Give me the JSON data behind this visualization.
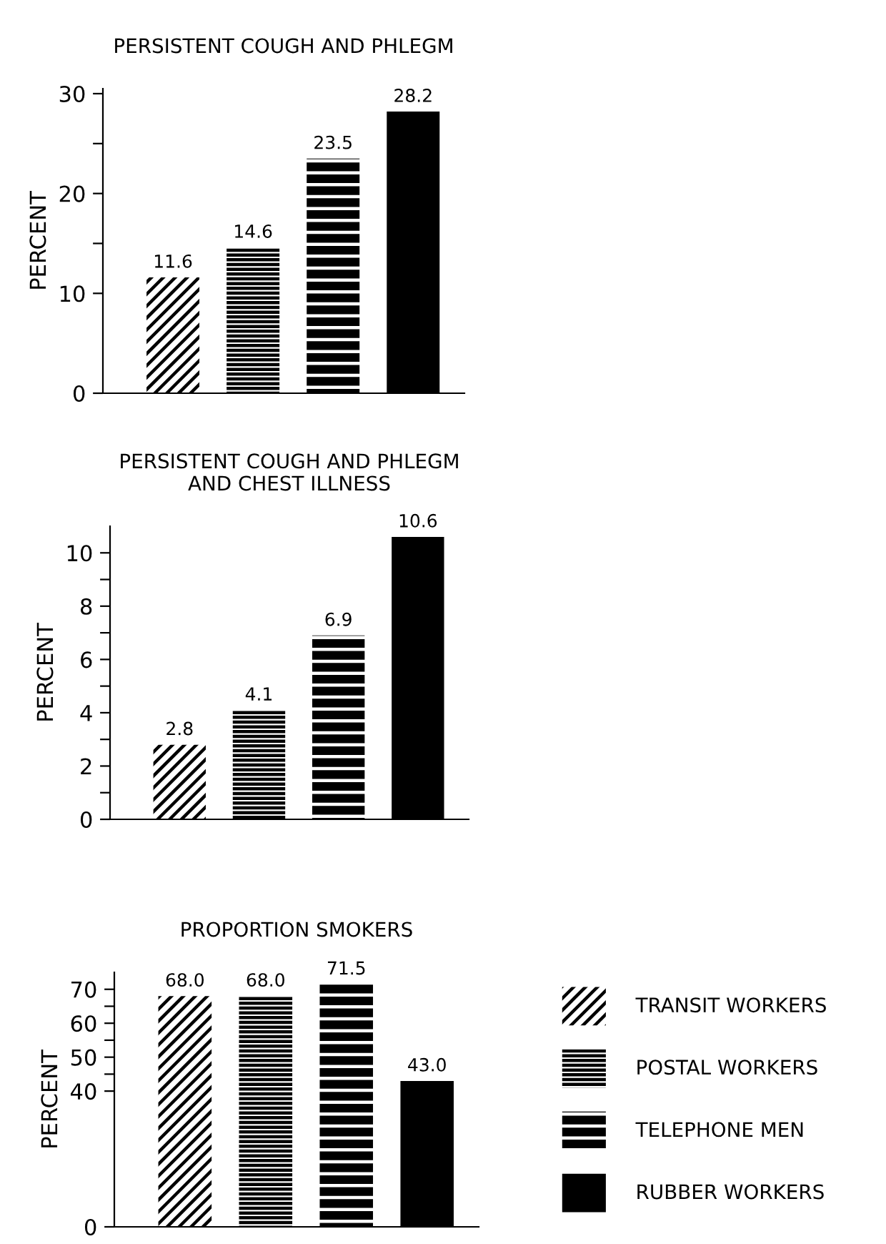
{
  "chart_data": [
    {
      "type": "bar",
      "title": "PERSISTENT COUGH AND PHLEGM",
      "ylabel": "PERCENT",
      "categories": [
        null
      ],
      "data_labels": true,
      "series": [
        {
          "color": "#000000",
          "values": [
            11.6
          ]
        },
        {
          "color": "#000000",
          "values": [
            14.6
          ]
        },
        {
          "color": "#000000",
          "values": [
            23.5
          ]
        },
        {
          "color": "#000000",
          "values": [
            28.2
          ]
        }
      ],
      "ylim": [
        0,
        30.5
      ],
      "yticks": [
        0,
        10,
        {
          "value": 15,
          "label": null
        },
        20,
        {
          "value": 25,
          "label": null
        },
        30
      ]
    },
    {
      "type": "bar",
      "title": "PERSISTENT COUGH AND PHLEGM\nAND CHEST ILLNESS",
      "ylabel": "PERCENT",
      "categories": [
        null
      ],
      "data_labels": true,
      "series": [
        {
          "color": "#000000",
          "values": [
            2.8
          ]
        },
        {
          "color": "#000000",
          "values": [
            4.1
          ]
        },
        {
          "color": "#000000",
          "values": [
            6.9
          ]
        },
        {
          "color": "#000000",
          "values": [
            10.6
          ]
        }
      ],
      "ylim": [
        0,
        11.0
      ],
      "yticks": [
        0,
        {
          "value": 1,
          "label": null
        },
        2,
        {
          "value": 3,
          "label": null
        },
        4,
        {
          "value": 5,
          "label": null
        },
        6,
        {
          "value": 7,
          "label": null
        },
        8,
        {
          "value": 9,
          "label": null
        },
        10
      ]
    },
    {
      "type": "bar",
      "title": "PROPORTION SMOKERS",
      "ylabel": "PERCENT",
      "categories": [
        null
      ],
      "legend": "right",
      "series": [
        {
          "name": "TRANSIT WORKERS",
          "color": "#000000",
          "values": [
            68.0
          ],
          "value_labels": [
            "68.0"
          ]
        },
        {
          "name": "POSTAL WORKERS",
          "color": "#000000",
          "values": [
            68.0
          ],
          "value_labels": [
            "68.0"
          ]
        },
        {
          "name": "TELEPHONE MEN",
          "color": "#000000",
          "values": [
            71.5
          ],
          "value_labels": [
            "71.5"
          ]
        },
        {
          "name": "RUBBER WORKERS",
          "color": "#000000",
          "values": [
            43.0
          ],
          "value_labels": [
            "43.0"
          ]
        }
      ],
      "ylim": [
        0,
        75
      ],
      "yticks": [
        0,
        40,
        {
          "value": 45,
          "label": null
        },
        50,
        {
          "value": 55,
          "label": null
        },
        60,
        {
          "value": 65,
          "label": null
        },
        70
      ]
    }
  ]
}
